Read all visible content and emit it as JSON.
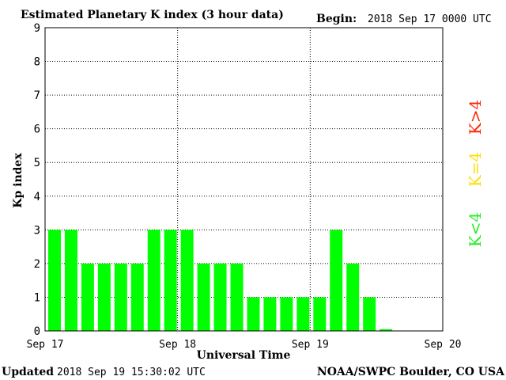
{
  "header": {
    "title": "Estimated Planetary K index (3 hour data)",
    "begin_label": "Begin:",
    "begin_value": "2018 Sep 17 0000 UTC"
  },
  "footer": {
    "updated_label": "Updated",
    "updated_value": "2018 Sep 19 15:30:02 UTC",
    "source": "NOAA/SWPC Boulder, CO USA"
  },
  "legend": {
    "high": "K>4",
    "mid": "K=4",
    "low": "K<4"
  },
  "colors": {
    "bar": "#00ff00",
    "high": "#ff2200",
    "mid": "#ffdd00",
    "low": "#22ee22",
    "grid": "#000000"
  },
  "chart_data": {
    "type": "bar",
    "title": "Estimated Planetary K index (3 hour data)",
    "xlabel": "Universal Time",
    "ylabel": "Kp index",
    "ylim": [
      0,
      9
    ],
    "yticks": [
      "0",
      "1",
      "2",
      "3",
      "4",
      "5",
      "6",
      "7",
      "8",
      "9"
    ],
    "xticks": [
      "Sep 17",
      "Sep 18",
      "Sep 19",
      "Sep 20"
    ],
    "bin_hours": 3,
    "values": [
      3,
      3,
      2,
      2,
      2,
      2,
      3,
      3,
      3,
      2,
      2,
      2,
      1,
      1,
      1,
      1,
      1,
      3,
      2,
      1,
      0.05
    ],
    "grid": true
  }
}
